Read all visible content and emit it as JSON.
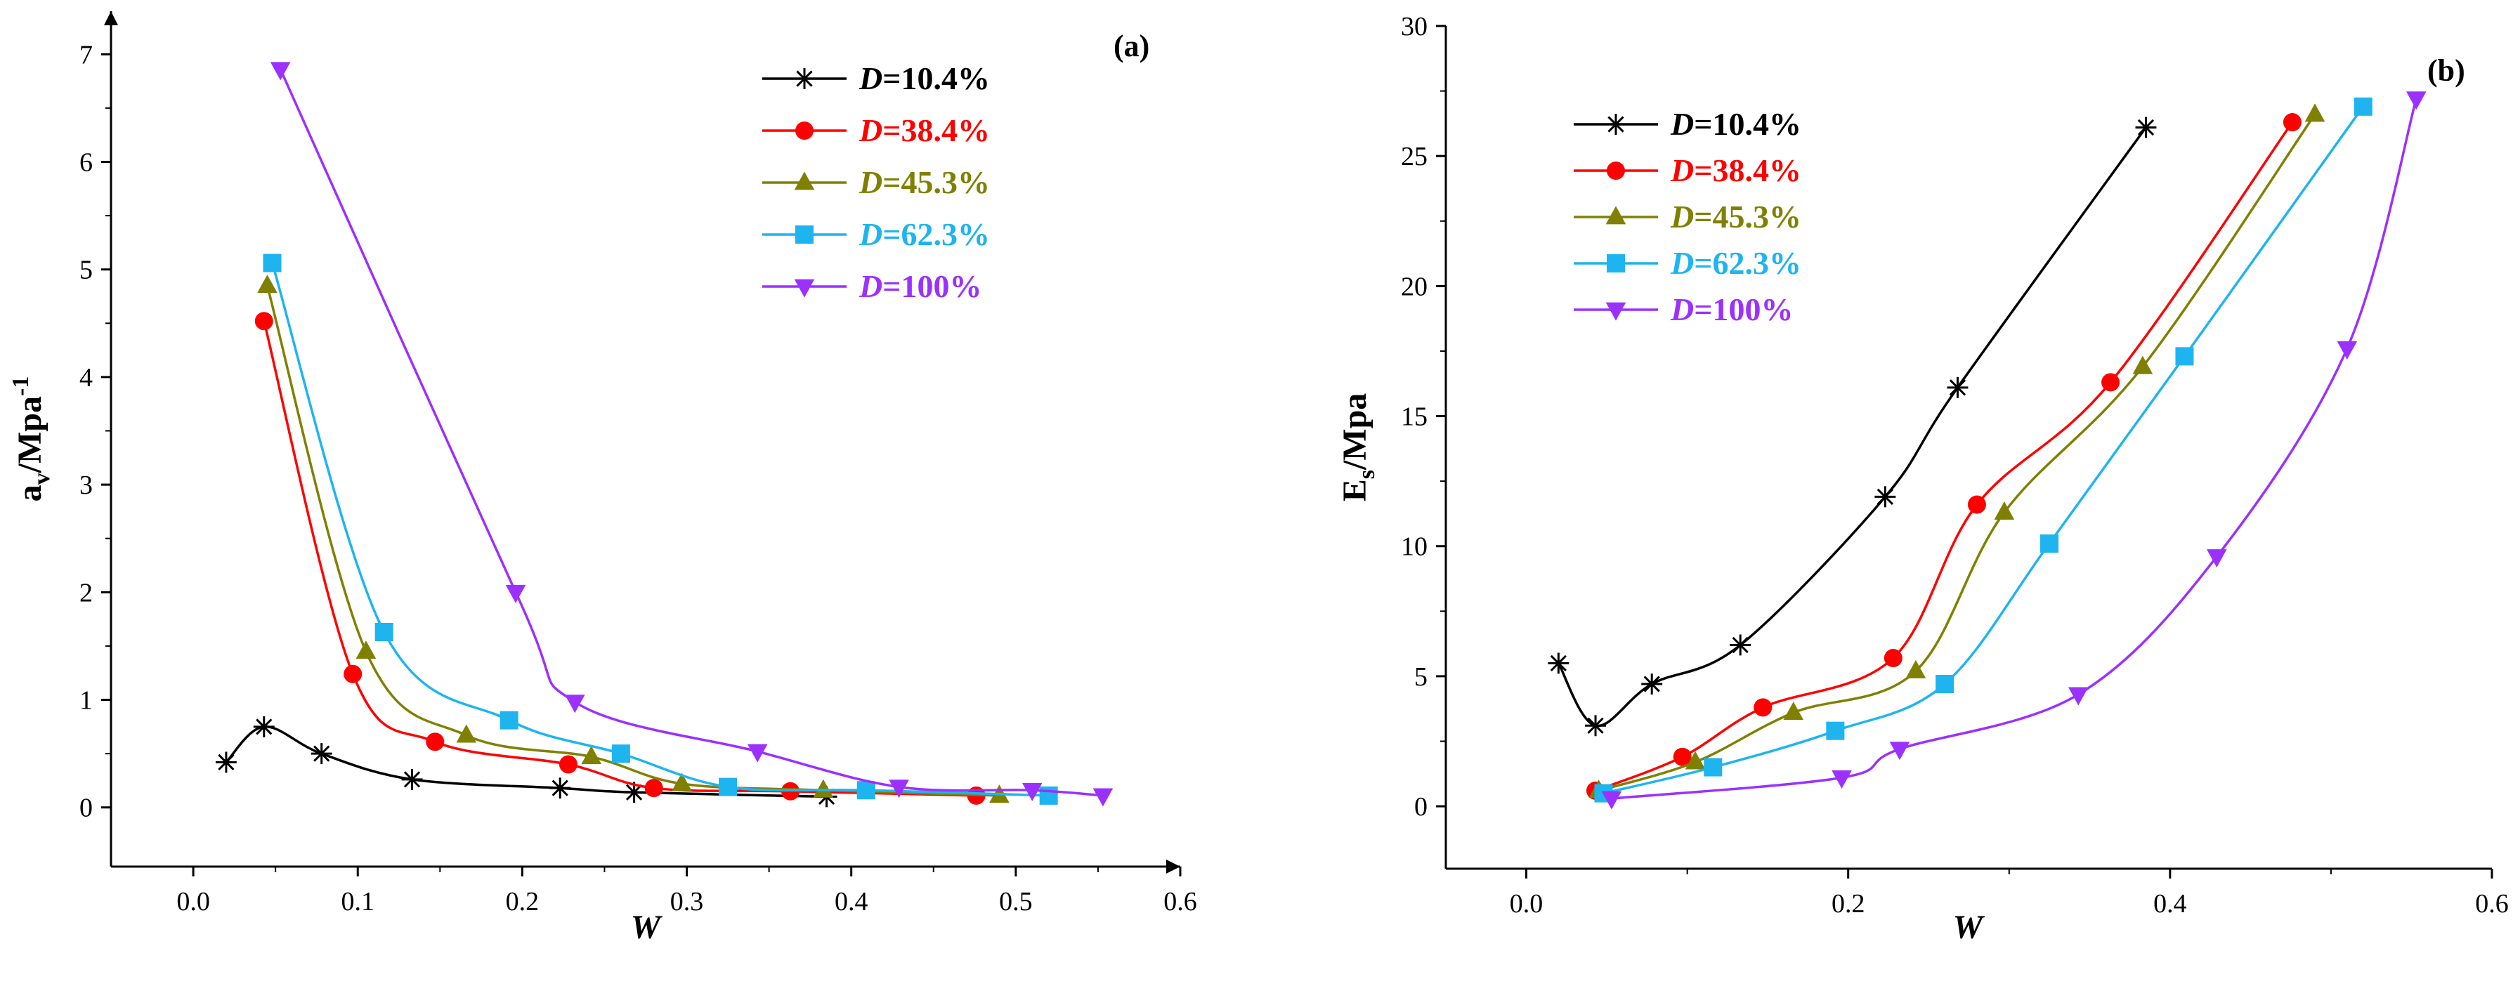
{
  "chart_data": [
    {
      "type": "line",
      "panel_label": "(a)",
      "xlabel": "W",
      "ylabel_main": "a",
      "ylabel_sub": "v",
      "ylabel_rest": "/Mpa",
      "ylabel_sup": "-1",
      "xlim": [
        -0.05,
        0.6
      ],
      "ylim": [
        -0.55,
        7.4
      ],
      "xticks": [
        0.0,
        0.1,
        0.2,
        0.3,
        0.4,
        0.5,
        0.6
      ],
      "xtick_labels": [
        "0.0",
        "0.1",
        "0.2",
        "0.3",
        "0.4",
        "0.5",
        "0.6"
      ],
      "yticks": [
        0,
        1,
        2,
        3,
        4,
        5,
        6,
        7
      ],
      "ytick_labels": [
        "0",
        "1",
        "2",
        "3",
        "4",
        "5",
        "6",
        "7"
      ],
      "legend_position": "top-right",
      "series": [
        {
          "name": "D=10.4%",
          "legend_italic": "D",
          "legend_rest": "=10.4%",
          "color": "#000000",
          "marker": "asterisk",
          "x": [
            0.02,
            0.043,
            0.078,
            0.133,
            0.223,
            0.268,
            0.385
          ],
          "y": [
            0.42,
            0.75,
            0.5,
            0.26,
            0.18,
            0.14,
            0.1
          ]
        },
        {
          "name": "D=38.4%",
          "legend_italic": "D",
          "legend_rest": "=38.4%",
          "color": "#ff0000",
          "marker": "circle",
          "x": [
            0.043,
            0.097,
            0.147,
            0.228,
            0.28,
            0.363,
            0.476
          ],
          "y": [
            4.52,
            1.24,
            0.61,
            0.4,
            0.18,
            0.15,
            0.11
          ]
        },
        {
          "name": "D=45.3%",
          "legend_italic": "D",
          "legend_rest": "=45.3%",
          "color": "#808000",
          "marker": "triangle-up",
          "x": [
            0.045,
            0.105,
            0.166,
            0.242,
            0.297,
            0.383,
            0.49
          ],
          "y": [
            4.85,
            1.45,
            0.67,
            0.47,
            0.22,
            0.16,
            0.11
          ]
        },
        {
          "name": "D=62.3%",
          "legend_italic": "D",
          "legend_rest": "=62.3%",
          "color": "#1eb4f0",
          "marker": "square",
          "x": [
            0.048,
            0.116,
            0.192,
            0.26,
            0.325,
            0.409,
            0.52
          ],
          "y": [
            5.06,
            1.63,
            0.81,
            0.5,
            0.19,
            0.16,
            0.11
          ]
        },
        {
          "name": "D=100%",
          "legend_italic": "D",
          "legend_rest": "=100%",
          "color": "#9b30ff",
          "marker": "triangle-down",
          "x": [
            0.053,
            0.196,
            0.232,
            0.343,
            0.429,
            0.51,
            0.553
          ],
          "y": [
            6.86,
            2.0,
            0.98,
            0.52,
            0.19,
            0.16,
            0.11
          ]
        }
      ]
    },
    {
      "type": "line",
      "panel_label": "(b)",
      "xlabel": "W",
      "ylabel_main": "E",
      "ylabel_sub": "s",
      "ylabel_rest": "/Mpa",
      "ylabel_sup": "",
      "xlim": [
        -0.05,
        0.6
      ],
      "ylim": [
        -2.4,
        30
      ],
      "xticks": [
        0.0,
        0.2,
        0.4,
        0.6
      ],
      "xtick_labels": [
        "0.0",
        "0.2",
        "0.4",
        "0.6"
      ],
      "yticks": [
        0,
        5,
        10,
        15,
        20,
        25,
        30
      ],
      "ytick_labels": [
        "0",
        "5",
        "10",
        "15",
        "20",
        "25",
        "30"
      ],
      "legend_position": "top-left",
      "series": [
        {
          "name": "D=10.4%",
          "legend_italic": "D",
          "legend_rest": "=10.4%",
          "color": "#000000",
          "marker": "asterisk",
          "x": [
            0.02,
            0.043,
            0.078,
            0.133,
            0.223,
            0.268,
            0.385
          ],
          "y": [
            5.5,
            3.1,
            4.7,
            6.2,
            11.9,
            16.1,
            26.1
          ]
        },
        {
          "name": "D=38.4%",
          "legend_italic": "D",
          "legend_rest": "=38.4%",
          "color": "#ff0000",
          "marker": "circle",
          "x": [
            0.043,
            0.097,
            0.147,
            0.228,
            0.28,
            0.363,
            0.476
          ],
          "y": [
            0.6,
            1.9,
            3.8,
            5.7,
            11.6,
            16.3,
            26.3
          ]
        },
        {
          "name": "D=45.3%",
          "legend_italic": "D",
          "legend_rest": "=45.3%",
          "color": "#808000",
          "marker": "triangle-up",
          "x": [
            0.045,
            0.105,
            0.166,
            0.242,
            0.297,
            0.383,
            0.49
          ],
          "y": [
            0.6,
            1.7,
            3.6,
            5.2,
            11.3,
            16.9,
            26.6
          ]
        },
        {
          "name": "D=62.3%",
          "legend_italic": "D",
          "legend_rest": "=62.3%",
          "color": "#1eb4f0",
          "marker": "square",
          "x": [
            0.048,
            0.116,
            0.192,
            0.26,
            0.325,
            0.409,
            0.52
          ],
          "y": [
            0.5,
            1.5,
            2.9,
            4.7,
            10.1,
            17.3,
            26.9
          ]
        },
        {
          "name": "D=100%",
          "legend_italic": "D",
          "legend_rest": "=100%",
          "color": "#9b30ff",
          "marker": "triangle-down",
          "x": [
            0.053,
            0.196,
            0.232,
            0.343,
            0.429,
            0.51,
            0.553
          ],
          "y": [
            0.3,
            1.1,
            2.2,
            4.3,
            9.6,
            17.6,
            27.2
          ]
        }
      ]
    }
  ]
}
